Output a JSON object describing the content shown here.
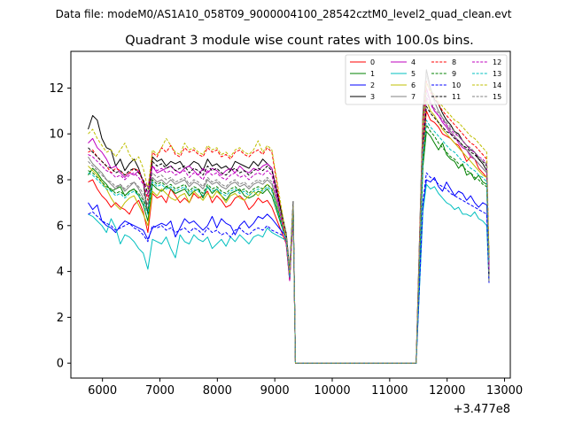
{
  "header_text": "Data file: modeM0/AS1A10_058T09_9000004100_28542cztM0_level2_quad_clean.evt",
  "chart_data": {
    "type": "line",
    "title": "Quadrant 3 module wise count rates with 100.0s bins.",
    "xlabel": "",
    "ylabel": "",
    "x_offset_label": "+3.477e8",
    "xlim": [
      5450,
      13100
    ],
    "ylim": [
      -0.65,
      13.6
    ],
    "xticks": [
      6000,
      7000,
      8000,
      9000,
      10000,
      11000,
      12000,
      13000
    ],
    "yticks": [
      0,
      2,
      4,
      6,
      8,
      10,
      12
    ],
    "grid": false,
    "legend_position": "top-right",
    "series": [
      {
        "name": "0",
        "color": "#ff0000",
        "dash": "solid",
        "levels": [
          7.9,
          8.0,
          7.6,
          7.3,
          7.1,
          6.8,
          7.0,
          6.8,
          6.7,
          6.5,
          6.9,
          7.1,
          6.6,
          5.7,
          7.4,
          7.2,
          7.3,
          7.0,
          7.6,
          7.3,
          7.0,
          7.2,
          7.0,
          7.4,
          7.2,
          7.3,
          7.5,
          7.0,
          7.3,
          7.1,
          6.8,
          6.9,
          7.2,
          7.3,
          7.1,
          6.7,
          6.9,
          7.2,
          7.0,
          7.1,
          6.8
        ],
        "tail": [
          11.0,
          10.6,
          10.5,
          10.3,
          10.0,
          9.9,
          9.8,
          9.6,
          9.5,
          9.2,
          8.8,
          9.0,
          8.9,
          8.5,
          8.3,
          8.1
        ]
      },
      {
        "name": "1",
        "color": "#008000",
        "dash": "solid",
        "levels": [
          8.2,
          8.5,
          8.3,
          8.0,
          7.8,
          7.5,
          7.6,
          7.7,
          7.3,
          7.5,
          7.6,
          7.3,
          6.9,
          6.2,
          7.8,
          7.6,
          7.5,
          7.7,
          7.6,
          7.4,
          7.5,
          7.6,
          7.3,
          7.5,
          7.6,
          7.2,
          7.7,
          7.4,
          7.6,
          7.3,
          7.1,
          7.4,
          7.5,
          7.6,
          7.3,
          7.2,
          7.3,
          7.5,
          7.4,
          7.6,
          7.3
        ],
        "tail": [
          10.1,
          9.9,
          9.6,
          9.3,
          9.6,
          9.1,
          8.9,
          8.8,
          8.5,
          8.7,
          8.2,
          8.3,
          8.0,
          8.2,
          7.9,
          7.8
        ]
      },
      {
        "name": "2",
        "color": "#0000ff",
        "dash": "solid",
        "levels": [
          7.0,
          6.7,
          6.9,
          6.2,
          6.0,
          5.9,
          5.7,
          6.0,
          6.2,
          6.1,
          6.0,
          5.9,
          5.8,
          5.4,
          5.9,
          6.0,
          6.1,
          6.0,
          6.2,
          5.5,
          5.9,
          6.3,
          6.1,
          6.2,
          6.0,
          5.8,
          6.0,
          6.4,
          5.9,
          6.3,
          6.1,
          6.0,
          5.6,
          6.0,
          6.2,
          5.9,
          6.1,
          6.4,
          6.3,
          6.5,
          6.3
        ],
        "tail": [
          8.0,
          7.9,
          8.1,
          7.7,
          7.5,
          7.9,
          7.6,
          7.3,
          7.5,
          7.4,
          7.1,
          7.3,
          7.0,
          6.8,
          7.0,
          6.9
        ]
      },
      {
        "name": "3",
        "color": "#000000",
        "dash": "solid",
        "levels": [
          10.2,
          10.8,
          10.6,
          9.8,
          9.4,
          9.3,
          8.6,
          8.9,
          8.4,
          8.7,
          8.9,
          8.5,
          7.9,
          6.5,
          9.0,
          8.8,
          8.9,
          8.6,
          8.8,
          8.7,
          8.8,
          8.5,
          8.6,
          8.8,
          8.7,
          8.4,
          8.9,
          8.6,
          8.7,
          8.5,
          8.6,
          8.4,
          8.8,
          8.7,
          8.6,
          8.5,
          8.8,
          8.6,
          8.9,
          8.7,
          8.5
        ],
        "tail": [
          12.8,
          12.0,
          11.5,
          11.3,
          10.9,
          10.6,
          10.4,
          10.1,
          10.0,
          9.7,
          9.5,
          9.3,
          9.2,
          8.9,
          8.7,
          8.4
        ]
      },
      {
        "name": "4",
        "color": "#bf00bf",
        "dash": "solid",
        "levels": [
          9.6,
          9.8,
          9.4,
          9.2,
          8.9,
          8.5,
          8.6,
          8.3,
          8.1,
          8.3,
          8.2,
          8.4,
          7.9,
          7.7,
          8.6,
          8.3,
          8.4,
          8.5,
          8.6,
          8.4,
          8.3,
          8.5,
          8.6,
          8.4,
          8.2,
          8.5,
          8.3,
          8.5,
          8.4,
          8.2,
          8.4,
          8.5,
          8.3,
          8.6,
          8.4,
          8.3,
          8.5,
          8.4,
          8.6,
          8.7,
          8.5
        ],
        "tail": [
          12.0,
          11.4,
          11.0,
          10.8,
          10.5,
          10.3,
          10.0,
          9.9,
          9.6,
          9.4,
          9.3,
          9.0,
          8.9,
          8.7,
          8.5,
          8.3
        ]
      },
      {
        "name": "5",
        "color": "#00bfbf",
        "dash": "solid",
        "levels": [
          6.5,
          6.4,
          6.2,
          6.0,
          5.7,
          6.3,
          5.9,
          5.2,
          5.6,
          5.5,
          5.3,
          5.0,
          4.8,
          4.1,
          5.4,
          5.3,
          5.2,
          5.5,
          5.0,
          4.6,
          5.6,
          5.3,
          5.2,
          5.6,
          5.4,
          5.3,
          5.5,
          5.0,
          5.2,
          5.4,
          5.1,
          5.5,
          5.3,
          5.6,
          5.4,
          5.2,
          5.5,
          5.6,
          5.5,
          5.9,
          5.7
        ],
        "tail": [
          7.8,
          7.6,
          7.7,
          7.4,
          7.2,
          7.0,
          6.9,
          6.7,
          6.8,
          6.5,
          6.5,
          6.4,
          6.6,
          6.3,
          6.2,
          6.0
        ]
      },
      {
        "name": "6",
        "color": "#bfbf00",
        "dash": "solid",
        "levels": [
          8.6,
          8.4,
          8.2,
          7.9,
          7.6,
          7.2,
          6.9,
          6.7,
          7.0,
          7.2,
          7.3,
          6.9,
          6.5,
          6.0,
          7.5,
          7.3,
          7.6,
          7.4,
          7.2,
          7.1,
          7.3,
          7.4,
          7.0,
          7.5,
          7.3,
          7.1,
          7.4,
          7.2,
          7.5,
          7.3,
          7.0,
          7.3,
          7.4,
          7.2,
          7.1,
          7.3,
          7.5,
          7.3,
          7.6,
          7.8,
          7.6
        ],
        "tail": [
          11.5,
          11.0,
          10.8,
          10.5,
          10.2,
          10.0,
          9.8,
          9.6,
          9.4,
          9.2,
          9.0,
          8.8,
          8.6,
          8.4,
          8.2,
          8.1
        ]
      },
      {
        "name": "7",
        "color": "#808080",
        "dash": "solid",
        "levels": [
          9.0,
          8.7,
          8.5,
          8.3,
          8.0,
          7.8,
          7.6,
          7.8,
          7.5,
          7.7,
          7.9,
          7.6,
          7.2,
          6.7,
          8.1,
          7.9,
          8.0,
          7.8,
          8.0,
          7.8,
          7.9,
          8.0,
          7.7,
          7.9,
          7.8,
          7.6,
          8.0,
          7.8,
          7.9,
          7.7,
          7.6,
          7.8,
          7.9,
          7.7,
          7.8,
          7.6,
          7.8,
          7.9,
          7.8,
          8.0,
          7.8
        ],
        "tail": [
          12.6,
          11.9,
          11.4,
          11.0,
          10.7,
          10.4,
          10.1,
          9.9,
          9.7,
          9.5,
          9.3,
          9.1,
          8.9,
          8.7,
          8.5,
          8.3
        ]
      },
      {
        "name": "8",
        "color": "#ff0000",
        "dash": "dashed",
        "levels": [
          9.2,
          9.3,
          9.0,
          8.8,
          8.6,
          8.3,
          8.5,
          8.4,
          8.2,
          8.3,
          8.5,
          8.4,
          7.9,
          7.1,
          9.2,
          9.0,
          9.4,
          9.2,
          9.5,
          9.1,
          9.0,
          9.4,
          9.2,
          9.3,
          9.1,
          9.0,
          9.4,
          9.2,
          9.3,
          9.0,
          9.1,
          8.9,
          9.2,
          9.3,
          9.1,
          9.0,
          9.2,
          9.3,
          9.1,
          9.4,
          9.2
        ],
        "tail": [
          12.3,
          11.8,
          11.6,
          11.3,
          11.0,
          10.8,
          10.6,
          10.4,
          10.2,
          10.0,
          9.8,
          9.6,
          9.5,
          9.3,
          9.1,
          8.9
        ]
      },
      {
        "name": "9",
        "color": "#008000",
        "dash": "dashed",
        "levels": [
          8.4,
          8.3,
          8.1,
          7.9,
          7.7,
          7.6,
          7.4,
          7.5,
          7.3,
          7.5,
          7.6,
          7.4,
          7.1,
          6.6,
          8.0,
          7.8,
          7.9,
          7.7,
          7.8,
          7.6,
          7.7,
          7.8,
          7.5,
          7.7,
          7.6,
          7.4,
          7.8,
          7.6,
          7.7,
          7.5,
          7.4,
          7.6,
          7.7,
          7.5,
          7.6,
          7.4,
          7.6,
          7.7,
          7.6,
          7.8,
          7.6
        ],
        "tail": [
          10.4,
          10.1,
          9.9,
          9.6,
          9.4,
          9.2,
          9.0,
          8.9,
          8.7,
          8.6,
          8.4,
          8.3,
          8.1,
          8.0,
          7.8,
          7.7
        ]
      },
      {
        "name": "10",
        "color": "#0000ff",
        "dash": "dashed",
        "levels": [
          6.5,
          6.6,
          6.4,
          6.2,
          6.1,
          6.0,
          5.8,
          5.9,
          6.0,
          6.1,
          5.9,
          5.8,
          5.6,
          5.3,
          6.0,
          5.9,
          6.0,
          5.8,
          5.9,
          5.7,
          5.8,
          5.9,
          5.7,
          5.9,
          5.8,
          5.6,
          5.9,
          5.7,
          5.8,
          5.6,
          5.7,
          5.5,
          5.8,
          5.9,
          5.7,
          5.6,
          5.8,
          5.9,
          5.8,
          6.0,
          5.8
        ],
        "tail": [
          8.3,
          8.1,
          8.0,
          7.8,
          7.7,
          7.6,
          7.4,
          7.3,
          7.2,
          7.1,
          7.0,
          6.9,
          6.8,
          6.7,
          6.6,
          6.5
        ]
      },
      {
        "name": "11",
        "color": "#000000",
        "dash": "dashed",
        "levels": [
          9.4,
          9.2,
          9.0,
          8.8,
          8.6,
          8.5,
          8.3,
          8.4,
          8.2,
          8.4,
          8.5,
          8.3,
          8.0,
          7.4,
          8.8,
          8.6,
          8.7,
          8.5,
          8.6,
          8.4,
          8.5,
          8.6,
          8.3,
          8.5,
          8.4,
          8.2,
          8.6,
          8.4,
          8.5,
          8.3,
          8.2,
          8.4,
          8.5,
          8.3,
          8.4,
          8.2,
          8.4,
          8.5,
          8.4,
          8.6,
          8.4
        ],
        "tail": [
          11.2,
          10.9,
          10.7,
          10.5,
          10.3,
          10.1,
          10.0,
          9.8,
          9.7,
          9.5,
          9.4,
          9.2,
          9.1,
          8.9,
          8.8,
          8.6
        ]
      },
      {
        "name": "12",
        "color": "#bf00bf",
        "dash": "dashed",
        "levels": [
          9.1,
          9.0,
          8.8,
          8.6,
          8.4,
          8.3,
          8.1,
          8.2,
          8.0,
          8.2,
          8.3,
          8.1,
          7.8,
          7.3,
          8.6,
          8.4,
          8.5,
          8.3,
          8.4,
          8.2,
          8.3,
          8.4,
          8.1,
          8.3,
          8.2,
          8.0,
          8.4,
          8.2,
          8.3,
          8.1,
          8.0,
          8.2,
          8.3,
          8.1,
          8.2,
          8.0,
          8.2,
          8.3,
          8.2,
          8.4,
          8.2
        ],
        "tail": [
          11.6,
          11.3,
          11.0,
          10.8,
          10.6,
          10.4,
          10.2,
          10.0,
          9.9,
          9.7,
          9.5,
          9.3,
          9.2,
          9.0,
          8.9,
          8.7
        ]
      },
      {
        "name": "13",
        "color": "#00bfbf",
        "dash": "dashed",
        "levels": [
          8.3,
          8.2,
          8.0,
          7.8,
          7.6,
          7.5,
          7.3,
          7.4,
          7.2,
          7.4,
          7.5,
          7.3,
          7.0,
          6.5,
          7.9,
          7.7,
          7.8,
          7.6,
          7.7,
          7.5,
          7.6,
          7.7,
          7.4,
          7.6,
          7.5,
          7.3,
          7.7,
          7.5,
          7.6,
          7.4,
          7.3,
          7.5,
          7.6,
          7.4,
          7.5,
          7.3,
          7.5,
          7.6,
          7.5,
          7.7,
          7.5
        ],
        "tail": [
          10.6,
          10.3,
          10.1,
          9.9,
          9.7,
          9.5,
          9.3,
          9.2,
          9.0,
          8.8,
          8.7,
          8.5,
          8.4,
          8.2,
          8.1,
          7.9
        ]
      },
      {
        "name": "14",
        "color": "#bfbf00",
        "dash": "dashed",
        "levels": [
          10.0,
          10.2,
          9.8,
          9.5,
          9.2,
          9.3,
          9.0,
          9.3,
          9.6,
          9.1,
          8.8,
          9.0,
          8.5,
          7.6,
          9.3,
          9.1,
          9.4,
          9.8,
          9.5,
          9.2,
          9.1,
          9.6,
          9.3,
          9.4,
          9.2,
          9.1,
          9.5,
          9.3,
          9.4,
          9.1,
          9.2,
          9.0,
          9.3,
          9.4,
          9.2,
          9.1,
          9.3,
          9.7,
          9.2,
          9.5,
          9.3
        ],
        "tail": [
          12.2,
          11.9,
          11.7,
          11.4,
          11.2,
          11.0,
          10.8,
          10.6,
          10.5,
          10.3,
          10.1,
          9.9,
          9.8,
          9.6,
          9.4,
          9.2
        ]
      },
      {
        "name": "15",
        "color": "#808080",
        "dash": "dashed",
        "levels": [
          8.8,
          8.6,
          8.4,
          8.2,
          8.0,
          7.9,
          7.7,
          7.8,
          7.6,
          7.8,
          7.9,
          7.7,
          7.4,
          6.9,
          8.3,
          8.1,
          8.2,
          8.0,
          8.1,
          7.9,
          8.0,
          8.1,
          7.8,
          8.0,
          7.9,
          7.7,
          8.1,
          7.9,
          8.0,
          7.8,
          7.7,
          7.9,
          8.0,
          7.8,
          7.9,
          7.7,
          7.9,
          8.0,
          7.9,
          8.1,
          7.9
        ],
        "tail": [
          11.8,
          11.4,
          11.1,
          10.9,
          10.7,
          10.5,
          10.3,
          10.1,
          9.9,
          9.7,
          9.5,
          9.4,
          9.2,
          9.0,
          8.8,
          8.7
        ]
      }
    ],
    "segment": {
      "start_x": 5750,
      "step": 80,
      "drop_points": [
        [
          9200,
          5.2
        ],
        [
          9260,
          3.6
        ],
        [
          9320,
          6.6
        ]
      ],
      "zero_start": 9360,
      "zero_end": 11460,
      "rise_x": 11580,
      "tail_start": 11640,
      "tail_step": 70,
      "end_points": [
        [
          12730,
          3.5
        ]
      ]
    }
  }
}
